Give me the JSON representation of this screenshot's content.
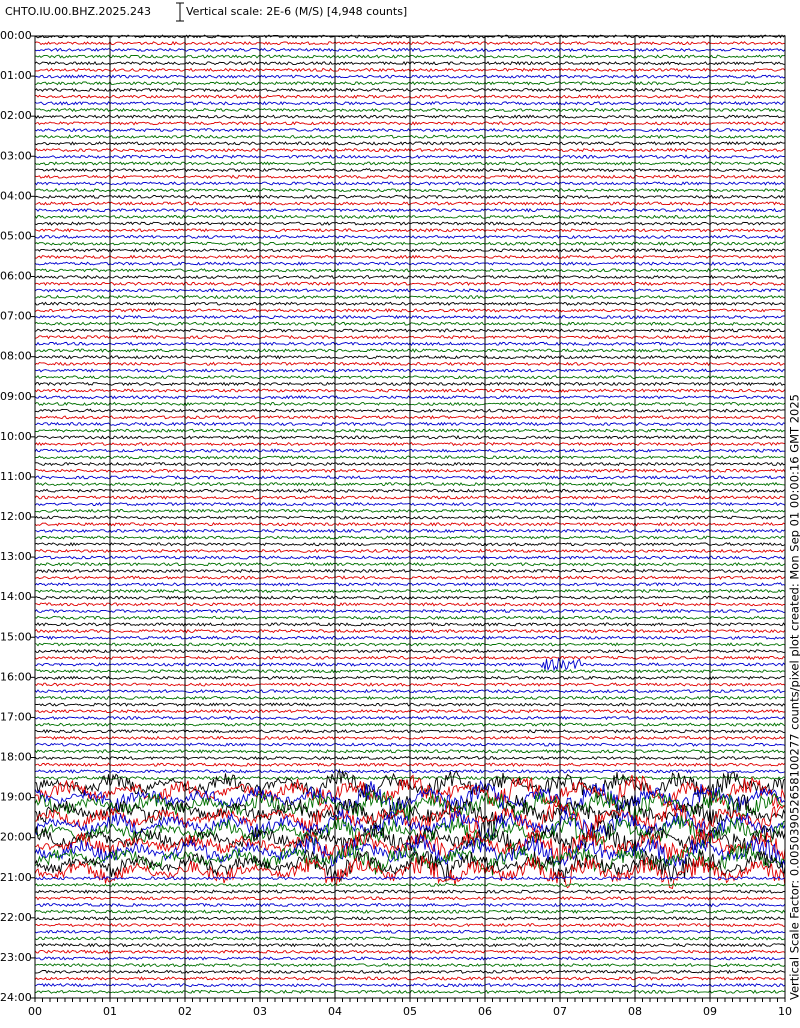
{
  "header": {
    "station": "CHTO.IU.00.BHZ.2025.243",
    "scale": "Vertical scale: 2E-6 (M/S) [4,948 counts]"
  },
  "axes": {
    "hour_labels": [
      "00:00",
      "01:00",
      "02:00",
      "03:00",
      "04:00",
      "05:00",
      "06:00",
      "07:00",
      "08:00",
      "09:00",
      "10:00",
      "11:00",
      "12:00",
      "13:00",
      "14:00",
      "15:00",
      "16:00",
      "17:00",
      "18:00",
      "19:00",
      "20:00",
      "21:00",
      "22:00",
      "23:00",
      "24:00"
    ],
    "minute_labels": [
      "00",
      "01",
      "02",
      "03",
      "04",
      "05",
      "06",
      "07",
      "08",
      "09",
      "10"
    ]
  },
  "side_note": "Vertical Scale Factor: 0.005039052658100277 counts/pixel plot created: Mon Sep 01 00:00:16 GMT 2025"
}
